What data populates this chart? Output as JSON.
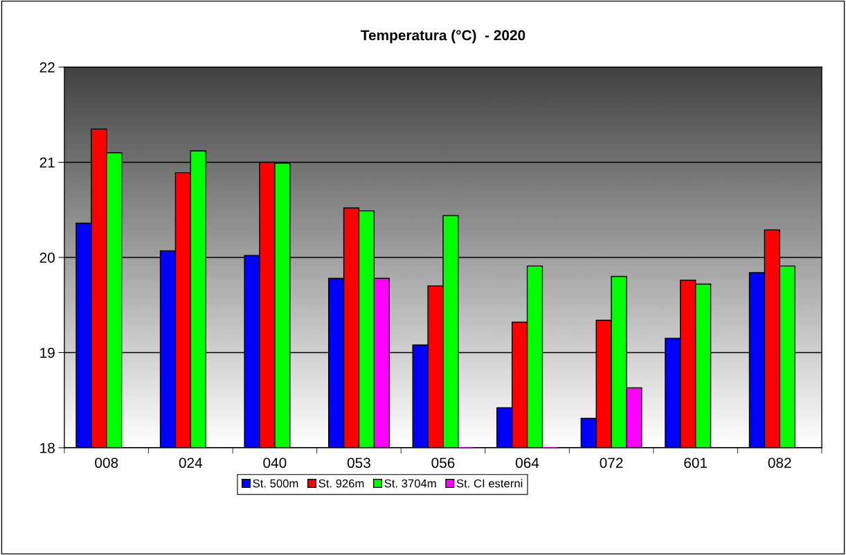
{
  "chart_data": {
    "type": "bar",
    "title": "Temperatura (°C)  - 2020",
    "categories": [
      "008",
      "024",
      "040",
      "053",
      "056",
      "064",
      "072",
      "601",
      "082"
    ],
    "series": [
      {
        "name": "St. 500m",
        "color": "#0000ff",
        "values": [
          20.36,
          20.07,
          20.02,
          19.78,
          19.08,
          18.42,
          18.31,
          19.15,
          19.84
        ]
      },
      {
        "name": "St. 926m",
        "color": "#ff0000",
        "values": [
          21.35,
          20.89,
          21.0,
          20.52,
          19.7,
          19.32,
          19.34,
          19.76,
          20.29
        ]
      },
      {
        "name": "St. 3704m",
        "color": "#00ff00",
        "values": [
          21.1,
          21.12,
          20.99,
          20.49,
          20.44,
          19.91,
          19.8,
          19.72,
          19.91
        ]
      },
      {
        "name": "St. CI esterni",
        "color": "#ff00ff",
        "values": [
          null,
          null,
          null,
          19.78,
          18.0,
          18.0,
          18.63,
          null,
          null
        ]
      }
    ],
    "ylim": [
      18,
      22
    ],
    "yticks": [
      18,
      19,
      20,
      21,
      22
    ],
    "grid": "y",
    "legend": "bottom"
  }
}
